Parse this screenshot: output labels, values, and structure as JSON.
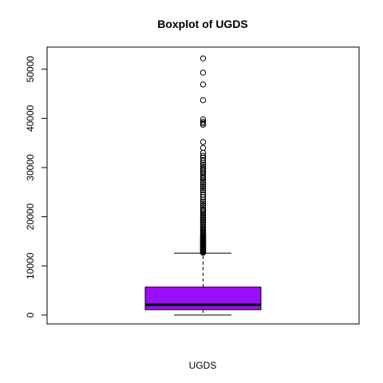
{
  "chart_data": {
    "type": "boxplot",
    "title": "Boxplot of UGDS",
    "xlabel": "UGDS",
    "ylabel": "",
    "ylim": [
      -1800,
      54500
    ],
    "yticks": [
      0,
      10000,
      20000,
      30000,
      40000,
      50000
    ],
    "ytick_labels": [
      "0",
      "10000",
      "20000",
      "30000",
      "40000",
      "50000"
    ],
    "box_fill": "#9b0dfb",
    "series": [
      {
        "min": 0,
        "q1": 1100,
        "median": 2100,
        "q3": 5700,
        "whisker_high": 12600,
        "outliers": [
          12700,
          12800,
          12900,
          13000,
          13100,
          13200,
          13300,
          13400,
          13500,
          13600,
          13700,
          13800,
          13900,
          14000,
          14100,
          14200,
          14300,
          14400,
          14500,
          14600,
          14700,
          14800,
          14900,
          15000,
          15100,
          15200,
          15300,
          15400,
          15500,
          15600,
          15700,
          15800,
          15900,
          16000,
          16200,
          16400,
          16600,
          16800,
          17000,
          17300,
          17600,
          17900,
          18200,
          18500,
          18800,
          19100,
          19400,
          19700,
          20000,
          20300,
          20600,
          20900,
          21200,
          21500,
          21900,
          22300,
          22700,
          23100,
          23500,
          24000,
          24500,
          25000,
          25400,
          25800,
          26200,
          26600,
          27000,
          27400,
          27800,
          28100,
          28500,
          28900,
          29200,
          29500,
          29800,
          30200,
          30600,
          31000,
          31500,
          32000,
          32400,
          33000,
          34000,
          35200,
          38700,
          39000,
          39300,
          39800,
          43700,
          46900,
          49300,
          52200
        ]
      }
    ]
  }
}
